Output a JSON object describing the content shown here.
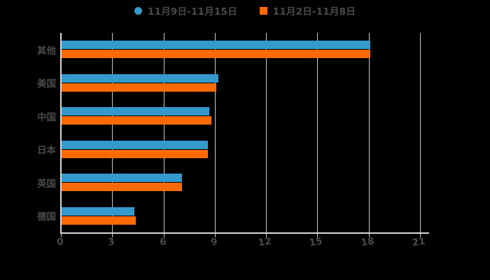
{
  "chart_data": {
    "type": "bar",
    "orientation": "horizontal",
    "title": "",
    "xlabel": "",
    "ylabel": "",
    "categories": [
      "其他",
      "美国",
      "中国",
      "日本",
      "英国",
      "德国"
    ],
    "series": [
      {
        "name": "11月9日-11月15日",
        "color": "#349ACD",
        "marker": "circle",
        "values": [
          18.1,
          9.2,
          8.7,
          8.6,
          7.1,
          4.3
        ]
      },
      {
        "name": "11月2日-11月8日",
        "color": "#FF6A00",
        "marker": "square",
        "values": [
          18.1,
          9.1,
          8.8,
          8.6,
          7.1,
          4.4
        ]
      }
    ],
    "xlim": [
      0,
      21
    ],
    "xticks": [
      "0",
      "3",
      "6",
      "9",
      "12",
      "15",
      "18",
      "21"
    ],
    "grid": "vertical",
    "legend_position": "top",
    "style": "hand-drawn"
  },
  "colors": {
    "background": "#000000",
    "series1": "#349ACD",
    "series2": "#FF6A00",
    "grid_line": "#CBCBCB",
    "axis_line": "#D8D8D8",
    "text": "#4A4A4A"
  }
}
